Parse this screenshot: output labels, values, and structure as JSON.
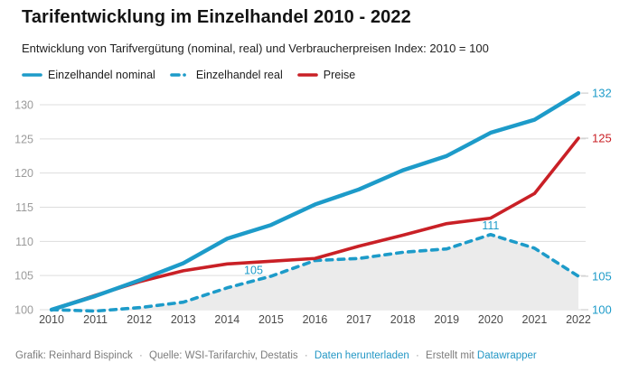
{
  "header": {
    "title": "Tarifentwicklung im Einzelhandel 2010 - 2022",
    "subtitle": "Entwicklung von Tarifvergütung (nominal, real) und Verbraucherpreisen Index: 2010 = 100"
  },
  "colors": {
    "blue": "#1d9bc9",
    "red": "#c92026",
    "grid": "#dddddd",
    "area_fill": "#ebebeb",
    "y_tick_label": "#9b9b9b",
    "x_tick_label": "#4a4a4a",
    "link": "#2397c5"
  },
  "legend": {
    "items": [
      {
        "label": "Einzelhandel nominal",
        "color": "#1d9bc9",
        "style": "solid"
      },
      {
        "label": "Einzelhandel real",
        "color": "#1d9bc9",
        "style": "dashed"
      },
      {
        "label": "Preise",
        "color": "#c92026",
        "style": "solid"
      }
    ]
  },
  "chart_data": {
    "type": "line",
    "title": "Tarifentwicklung im Einzelhandel 2010 - 2022",
    "subtitle": "Entwicklung von Tarifvergütung (nominal, real) und Verbraucherpreisen Index: 2010 = 100",
    "x": [
      2010,
      2011,
      2012,
      2013,
      2014,
      2015,
      2016,
      2017,
      2018,
      2019,
      2020,
      2021,
      2022
    ],
    "series": [
      {
        "name": "Einzelhandel real",
        "color": "#1d9bc9",
        "style": "dashed",
        "area": true,
        "values": [
          100,
          99.8,
          100.3,
          101.1,
          103.2,
          104.9,
          107.2,
          107.5,
          108.4,
          108.9,
          111.0,
          109.0,
          104.9
        ]
      },
      {
        "name": "Preise",
        "color": "#c92026",
        "style": "solid",
        "area": false,
        "values": [
          100,
          102.1,
          104.1,
          105.7,
          106.7,
          107.1,
          107.5,
          109.3,
          110.9,
          112.6,
          113.4,
          117.0,
          125.1
        ]
      },
      {
        "name": "Einzelhandel nominal",
        "color": "#1d9bc9",
        "style": "solid",
        "area": false,
        "values": [
          100,
          102.0,
          104.3,
          106.8,
          110.4,
          112.4,
          115.4,
          117.6,
          120.4,
          122.5,
          125.9,
          127.8,
          131.7
        ]
      }
    ],
    "ylim": [
      100,
      130
    ],
    "yticks": [
      100,
      105,
      110,
      115,
      120,
      125,
      130
    ],
    "grid": "horizontal",
    "legend_position": "top",
    "annotations": [
      {
        "text": "105",
        "x": 2014.6,
        "value": 104.4,
        "color": "#1d9bc9"
      },
      {
        "text": "111",
        "x": 2020,
        "value": 111.0,
        "color": "#1d9bc9"
      }
    ],
    "end_labels": [
      {
        "text": "132",
        "value": 131.7,
        "color": "#1d9bc9"
      },
      {
        "text": "125",
        "value": 125.1,
        "color": "#c92026"
      },
      {
        "text": "105",
        "value": 104.9,
        "color": "#1d9bc9"
      },
      {
        "text": "100",
        "value": 100.0,
        "color": "#1d9bc9"
      }
    ]
  },
  "footer": {
    "credit": "Grafik: Reinhard Bispinck",
    "separator": "·",
    "source": "Quelle: WSI-Tarifarchiv, Destatis",
    "download_link": "Daten herunterladen",
    "created_with": "Erstellt mit",
    "brand": "Datawrapper"
  }
}
